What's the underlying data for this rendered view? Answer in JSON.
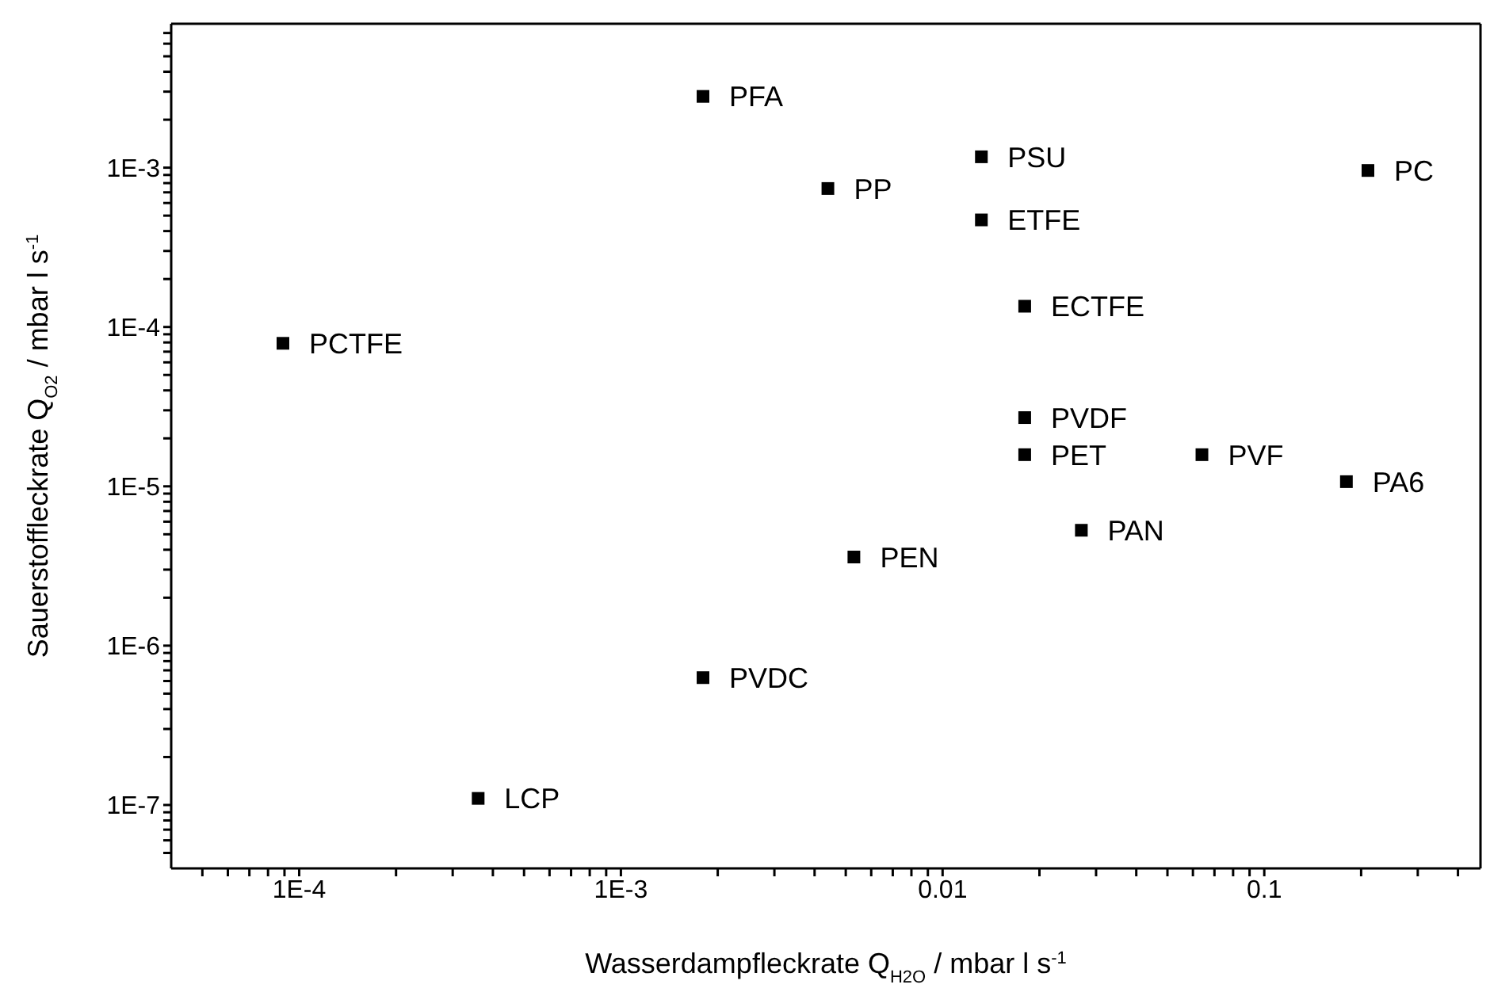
{
  "chart_data": {
    "type": "scatter",
    "xlabel": "Wasserdampfleckrate Q$_{H2O}$ / mbar l s$^{-1}$",
    "ylabel": "Sauerstoffleckrate Q$_{O2}$ / mbar l s$^{-1}$",
    "log": "xy",
    "marker": "square",
    "xlim": [
      4e-05,
      0.47
    ],
    "ylim": [
      4e-08,
      0.008
    ],
    "xticks": [
      {
        "value": 5e-05,
        "label": null
      },
      {
        "value": 6e-05,
        "label": null
      },
      {
        "value": 7e-05,
        "label": null
      },
      {
        "value": 8e-05,
        "label": null
      },
      {
        "value": 9e-05,
        "label": null
      },
      {
        "value": 0.0001,
        "label": "1E-4"
      },
      {
        "value": 0.0002,
        "label": null
      },
      {
        "value": 0.0003,
        "label": null
      },
      {
        "value": 0.0004,
        "label": null
      },
      {
        "value": 0.0005,
        "label": null
      },
      {
        "value": 0.0006,
        "label": null
      },
      {
        "value": 0.0007,
        "label": null
      },
      {
        "value": 0.0008,
        "label": null
      },
      {
        "value": 0.0009,
        "label": null
      },
      {
        "value": 0.001,
        "label": "1E-3"
      },
      {
        "value": 0.002,
        "label": null
      },
      {
        "value": 0.003,
        "label": null
      },
      {
        "value": 0.004,
        "label": null
      },
      {
        "value": 0.005,
        "label": null
      },
      {
        "value": 0.006,
        "label": null
      },
      {
        "value": 0.007,
        "label": null
      },
      {
        "value": 0.008,
        "label": null
      },
      {
        "value": 0.009,
        "label": null
      },
      0.01,
      {
        "value": 0.02,
        "label": null
      },
      {
        "value": 0.03,
        "label": null
      },
      {
        "value": 0.04,
        "label": null
      },
      {
        "value": 0.05,
        "label": null
      },
      {
        "value": 0.06,
        "label": null
      },
      {
        "value": 0.07,
        "label": null
      },
      {
        "value": 0.08,
        "label": null
      },
      {
        "value": 0.09,
        "label": null
      },
      0.1,
      {
        "value": 0.2,
        "label": null
      },
      {
        "value": 0.3,
        "label": null
      },
      {
        "value": 0.4,
        "label": null
      }
    ],
    "yticks": [
      {
        "value": 5e-08,
        "label": null
      },
      {
        "value": 6e-08,
        "label": null
      },
      {
        "value": 7e-08,
        "label": null
      },
      {
        "value": 8e-08,
        "label": null
      },
      {
        "value": 9e-08,
        "label": null
      },
      {
        "value": 1e-07,
        "label": "1E-7"
      },
      {
        "value": 2e-07,
        "label": null
      },
      {
        "value": 3e-07,
        "label": null
      },
      {
        "value": 4e-07,
        "label": null
      },
      {
        "value": 5e-07,
        "label": null
      },
      {
        "value": 6e-07,
        "label": null
      },
      {
        "value": 7e-07,
        "label": null
      },
      {
        "value": 8e-07,
        "label": null
      },
      {
        "value": 9e-07,
        "label": null
      },
      {
        "value": 1e-06,
        "label": "1E-6"
      },
      {
        "value": 2e-06,
        "label": null
      },
      {
        "value": 3e-06,
        "label": null
      },
      {
        "value": 4e-06,
        "label": null
      },
      {
        "value": 5e-06,
        "label": null
      },
      {
        "value": 6e-06,
        "label": null
      },
      {
        "value": 7e-06,
        "label": null
      },
      {
        "value": 8e-06,
        "label": null
      },
      {
        "value": 9e-06,
        "label": null
      },
      {
        "value": 1e-05,
        "label": "1E-5"
      },
      {
        "value": 2e-05,
        "label": null
      },
      {
        "value": 3e-05,
        "label": null
      },
      {
        "value": 4e-05,
        "label": null
      },
      {
        "value": 5e-05,
        "label": null
      },
      {
        "value": 6e-05,
        "label": null
      },
      {
        "value": 7e-05,
        "label": null
      },
      {
        "value": 8e-05,
        "label": null
      },
      {
        "value": 9e-05,
        "label": null
      },
      {
        "value": 0.0001,
        "label": "1E-4"
      },
      {
        "value": 0.0002,
        "label": null
      },
      {
        "value": 0.0003,
        "label": null
      },
      {
        "value": 0.0004,
        "label": null
      },
      {
        "value": 0.0005,
        "label": null
      },
      {
        "value": 0.0006,
        "label": null
      },
      {
        "value": 0.0007,
        "label": null
      },
      {
        "value": 0.0008,
        "label": null
      },
      {
        "value": 0.0009,
        "label": null
      },
      {
        "value": 0.001,
        "label": "1E-3"
      },
      {
        "value": 0.002,
        "label": null
      },
      {
        "value": 0.003,
        "label": null
      },
      {
        "value": 0.004,
        "label": null
      },
      {
        "value": 0.005,
        "label": null
      },
      {
        "value": 0.006,
        "label": null
      },
      {
        "value": 0.007,
        "label": null
      }
    ],
    "series": [
      {
        "name": "PFA",
        "color": "#000000",
        "x": [
          0.0018
        ],
        "values": [
          0.0028
        ]
      },
      {
        "name": "PP",
        "color": "#000000",
        "x": [
          0.0044
        ],
        "values": [
          0.00074
        ]
      },
      {
        "name": "PSU",
        "color": "#000000",
        "x": [
          0.0132
        ],
        "values": [
          0.00117
        ]
      },
      {
        "name": "ETFE",
        "color": "#000000",
        "x": [
          0.0132
        ],
        "values": [
          0.00047
        ]
      },
      {
        "name": "PC",
        "color": "#000000",
        "x": [
          0.21
        ],
        "values": [
          0.00096
        ]
      },
      {
        "name": "PCTFE",
        "color": "#000000",
        "x": [
          8.9e-05
        ],
        "values": [
          7.9e-05
        ]
      },
      {
        "name": "ECTFE",
        "color": "#000000",
        "x": [
          0.018
        ],
        "values": [
          0.000135
        ]
      },
      {
        "name": "PVDF",
        "color": "#000000",
        "x": [
          0.018
        ],
        "values": [
          2.7e-05
        ]
      },
      {
        "name": "PET",
        "color": "#000000",
        "x": [
          0.018
        ],
        "values": [
          1.58e-05
        ]
      },
      {
        "name": "PVF",
        "color": "#000000",
        "x": [
          0.064
        ],
        "values": [
          1.58e-05
        ]
      },
      {
        "name": "PA6",
        "color": "#000000",
        "x": [
          0.18
        ],
        "values": [
          1.07e-05
        ]
      },
      {
        "name": "PAN",
        "color": "#000000",
        "x": [
          0.027
        ],
        "values": [
          5.3e-06
        ]
      },
      {
        "name": "PEN",
        "color": "#000000",
        "x": [
          0.0053
        ],
        "values": [
          3.6e-06
        ]
      },
      {
        "name": "PVDC",
        "color": "#000000",
        "x": [
          0.0018
        ],
        "values": [
          6.3e-07
        ]
      },
      {
        "name": "LCP",
        "color": "#000000",
        "x": [
          0.00036
        ],
        "values": [
          1.1e-07
        ]
      }
    ]
  }
}
